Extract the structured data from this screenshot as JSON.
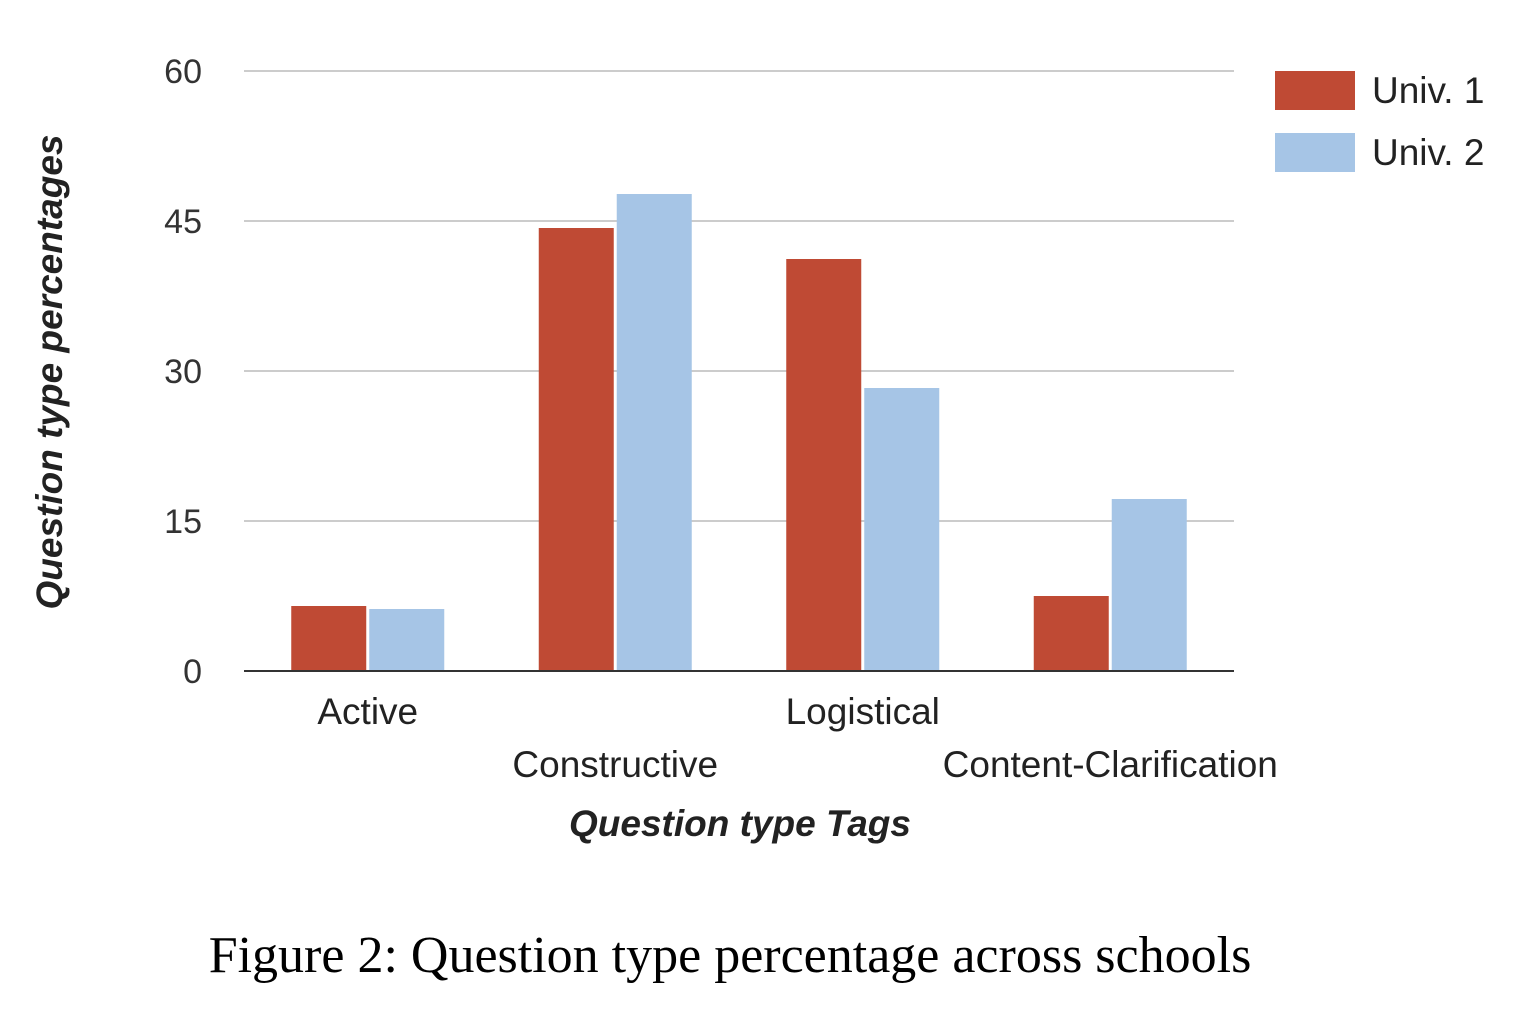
{
  "chart_data": {
    "type": "bar",
    "categories": [
      "Active",
      "Constructive",
      "Logistical",
      "Content-Clarification"
    ],
    "series": [
      {
        "name": "Univ. 1",
        "values": [
          6.5,
          44.3,
          41.2,
          7.5
        ],
        "color": "#bf4a34"
      },
      {
        "name": "Univ. 2",
        "values": [
          6.2,
          47.7,
          28.3,
          17.2
        ],
        "color": "#a6c5e6"
      }
    ],
    "xlabel": "Question type Tags",
    "ylabel": "Question type percentages",
    "ylim": [
      0,
      60
    ],
    "yticks": [
      0,
      15,
      30,
      45,
      60
    ],
    "grid": true,
    "legend_position": "top-right"
  },
  "caption": "Figure 2: Question type percentage across schools",
  "colors": {
    "grid": "#cccccc",
    "axis": "#333333"
  }
}
